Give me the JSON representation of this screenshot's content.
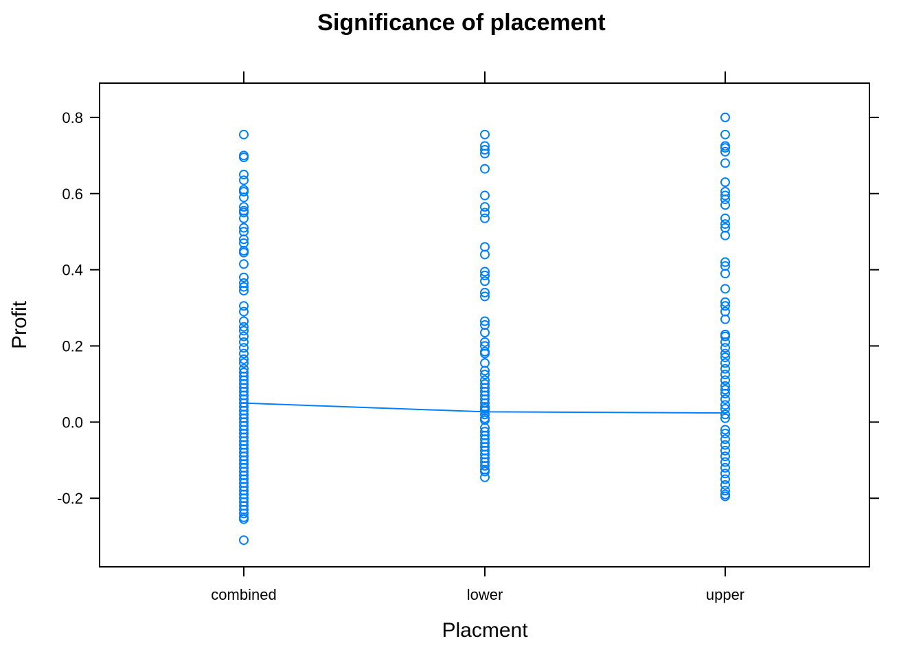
{
  "chart_data": {
    "type": "scatter",
    "title": "Significance of placement",
    "xlabel": "Placment",
    "ylabel": "Profit",
    "categories": [
      "combined",
      "lower",
      "upper"
    ],
    "ylim": [
      -0.38,
      0.89
    ],
    "yticks": [
      -0.2,
      0.0,
      0.2,
      0.4,
      0.6,
      0.8
    ],
    "ytick_labels": [
      "-0.2",
      "0.0",
      "0.2",
      "0.4",
      "0.6",
      "0.8"
    ],
    "grid": false,
    "point_color": "#0080ff",
    "line_color": "#0080ff",
    "points": {
      "combined": [
        0.755,
        0.7,
        0.695,
        0.65,
        0.635,
        0.61,
        0.605,
        0.59,
        0.565,
        0.555,
        0.55,
        0.535,
        0.51,
        0.5,
        0.48,
        0.47,
        0.45,
        0.445,
        0.415,
        0.38,
        0.365,
        0.355,
        0.345,
        0.305,
        0.29,
        0.265,
        0.25,
        0.24,
        0.225,
        0.21,
        0.195,
        0.18,
        0.165,
        0.155,
        0.14,
        0.13,
        0.12,
        0.11,
        0.1,
        0.09,
        0.08,
        0.07,
        0.06,
        0.05,
        0.04,
        0.03,
        0.02,
        0.01,
        0.0,
        -0.01,
        -0.02,
        -0.03,
        -0.04,
        -0.05,
        -0.06,
        -0.07,
        -0.08,
        -0.09,
        -0.1,
        -0.11,
        -0.12,
        -0.13,
        -0.14,
        -0.15,
        -0.16,
        -0.17,
        -0.18,
        -0.19,
        -0.2,
        -0.21,
        -0.22,
        -0.23,
        -0.24,
        -0.25,
        -0.255,
        -0.31
      ],
      "lower": [
        0.755,
        0.725,
        0.715,
        0.705,
        0.665,
        0.595,
        0.565,
        0.55,
        0.535,
        0.46,
        0.44,
        0.395,
        0.385,
        0.37,
        0.34,
        0.33,
        0.265,
        0.255,
        0.235,
        0.21,
        0.2,
        0.185,
        0.18,
        0.155,
        0.135,
        0.125,
        0.11,
        0.1,
        0.09,
        0.08,
        0.07,
        0.06,
        0.05,
        0.04,
        0.035,
        0.03,
        0.02,
        0.01,
        0.005,
        -0.015,
        -0.025,
        -0.035,
        -0.045,
        -0.055,
        -0.065,
        -0.075,
        -0.085,
        -0.095,
        -0.105,
        -0.115,
        -0.125,
        -0.13,
        -0.145
      ],
      "upper": [
        0.8,
        0.755,
        0.725,
        0.72,
        0.71,
        0.68,
        0.63,
        0.605,
        0.595,
        0.585,
        0.57,
        0.535,
        0.52,
        0.51,
        0.49,
        0.42,
        0.41,
        0.39,
        0.35,
        0.315,
        0.305,
        0.29,
        0.27,
        0.23,
        0.225,
        0.21,
        0.195,
        0.18,
        0.17,
        0.155,
        0.14,
        0.125,
        0.11,
        0.095,
        0.085,
        0.075,
        0.06,
        0.045,
        0.035,
        0.02,
        0.01,
        -0.02,
        -0.03,
        -0.045,
        -0.06,
        -0.075,
        -0.09,
        -0.105,
        -0.12,
        -0.135,
        -0.15,
        -0.165,
        -0.18,
        -0.19,
        -0.195
      ]
    },
    "mean_line": {
      "values": [
        0.05,
        0.027,
        0.024
      ]
    }
  }
}
